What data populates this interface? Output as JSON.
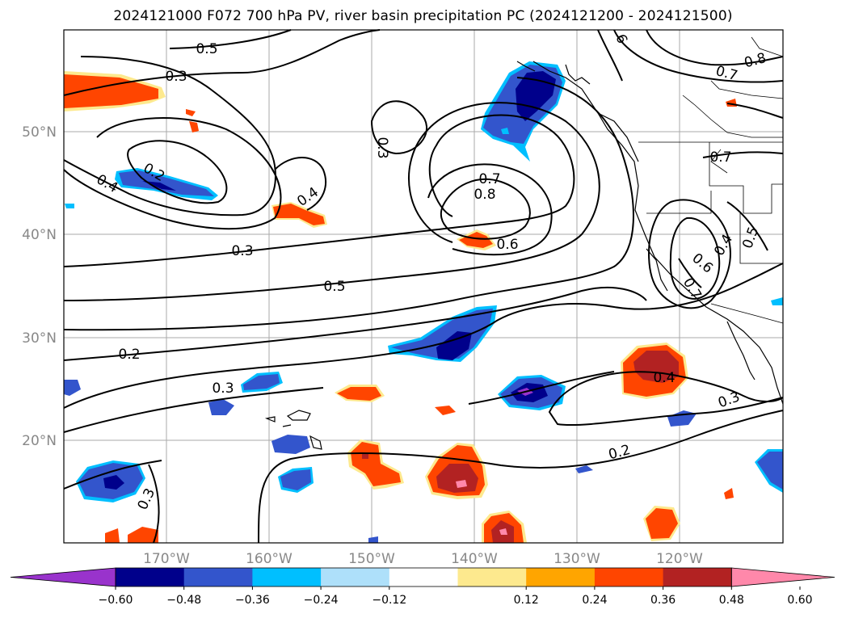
{
  "title": "2024121000 F072 700 hPa PV, river basin precipitation PC (2024121200 - 2024121500)",
  "map": {
    "lon_ticks": [
      "170°W",
      "160°W",
      "150°W",
      "140°W",
      "130°W",
      "120°W"
    ],
    "lat_ticks": [
      "50°N",
      "40°N",
      "30°N",
      "20°N"
    ],
    "contour_labels": [
      "0.5",
      "0.3",
      "0.4",
      "0.2",
      "0.3",
      "0.4",
      "0.3",
      "0.7",
      "0.8",
      "0.6",
      "0.5",
      "0.4",
      "0.2",
      "0.3",
      "0.3",
      "0.4",
      "0.3",
      "0.2",
      "0.8",
      "0.7",
      "0.7",
      "0.6",
      "0.4",
      "0.5",
      "0.7",
      "6"
    ]
  },
  "colorbar": {
    "ticks": [
      "−0.60",
      "−0.48",
      "−0.36",
      "−0.24",
      "−0.12",
      "0.12",
      "0.24",
      "0.36",
      "0.48",
      "0.60"
    ],
    "colors": [
      "#9933cc",
      "#00008b",
      "#3355cc",
      "#00bfff",
      "#aee0fa",
      "#ffffff",
      "#fde98e",
      "#ffa500",
      "#ff4500",
      "#b22222",
      "#ff88aa"
    ]
  },
  "colors": {
    "precip_neg_light": "#aee0fa",
    "precip_neg_mid": "#00bfff",
    "precip_neg_dark": "#3355cc",
    "precip_neg_darker": "#00008b",
    "precip_neg_min": "#9933cc",
    "precip_pos_light": "#fde98e",
    "precip_pos_mid": "#ffa500",
    "precip_pos_dark": "#ff4500",
    "precip_pos_darker": "#b22222",
    "precip_pos_max": "#ff88aa"
  }
}
